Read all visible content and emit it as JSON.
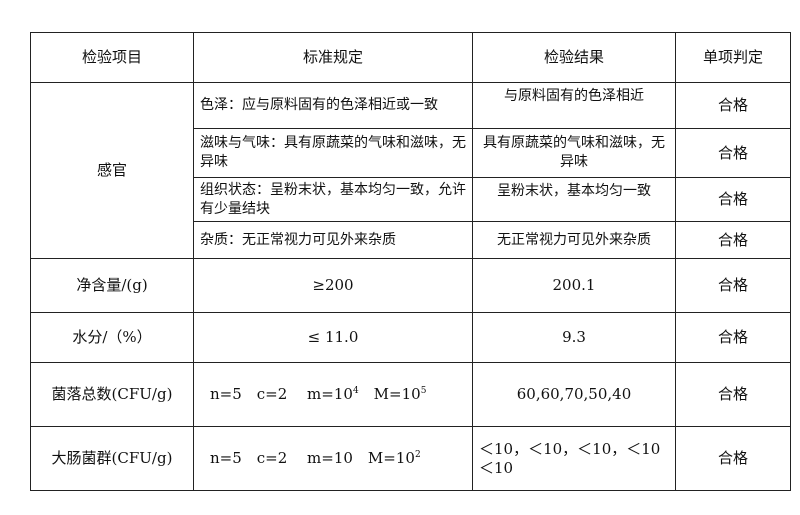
{
  "headers": [
    "检验项目",
    "标准规定",
    "检验结果",
    "单项判定"
  ],
  "sensory": {
    "item": "感官",
    "rows": [
      {
        "standard": "色泽：应与原料固有的色泽相近或一致",
        "result": "与原料固有的色泽相近",
        "verdict": "合格"
      },
      {
        "standard": "滋味与气味：具有原蔬菜的气味和滋味，无异味",
        "result": "具有原蔬菜的气味和滋味，无异味",
        "verdict": "合格"
      },
      {
        "standard": "组织状态：呈粉末状，基本均匀一致，允许有少量结块",
        "result": "呈粉末状，基本均匀一致",
        "verdict": "合格"
      },
      {
        "standard": "杂质：无正常视力可见外来杂质",
        "result": "无正常视力可见外来杂质",
        "verdict": "合格"
      }
    ]
  },
  "net": {
    "item": "净含量/(g)",
    "standard": "≥200",
    "result": "200.1",
    "verdict": "合格"
  },
  "water": {
    "item": "水分/（%）",
    "standard": "≤ 11.0",
    "result": "9.3",
    "verdict": "合格"
  },
  "colony": {
    "item": "菌落总数(CFU/g)",
    "standard_prefix": "n=5　c=2　 m=10",
    "exp1": "4",
    "standard_mid": "　M=10",
    "exp2": "5",
    "result": "60,60,70,50,40",
    "verdict": "合格"
  },
  "coliform": {
    "item": "大肠菌群(CFU/g)",
    "standard_prefix": "n=5　c=2　 m=10　M=10",
    "exp": "2",
    "result": "＜10，＜10，＜10，＜10 ＜10",
    "verdict": "合格"
  }
}
